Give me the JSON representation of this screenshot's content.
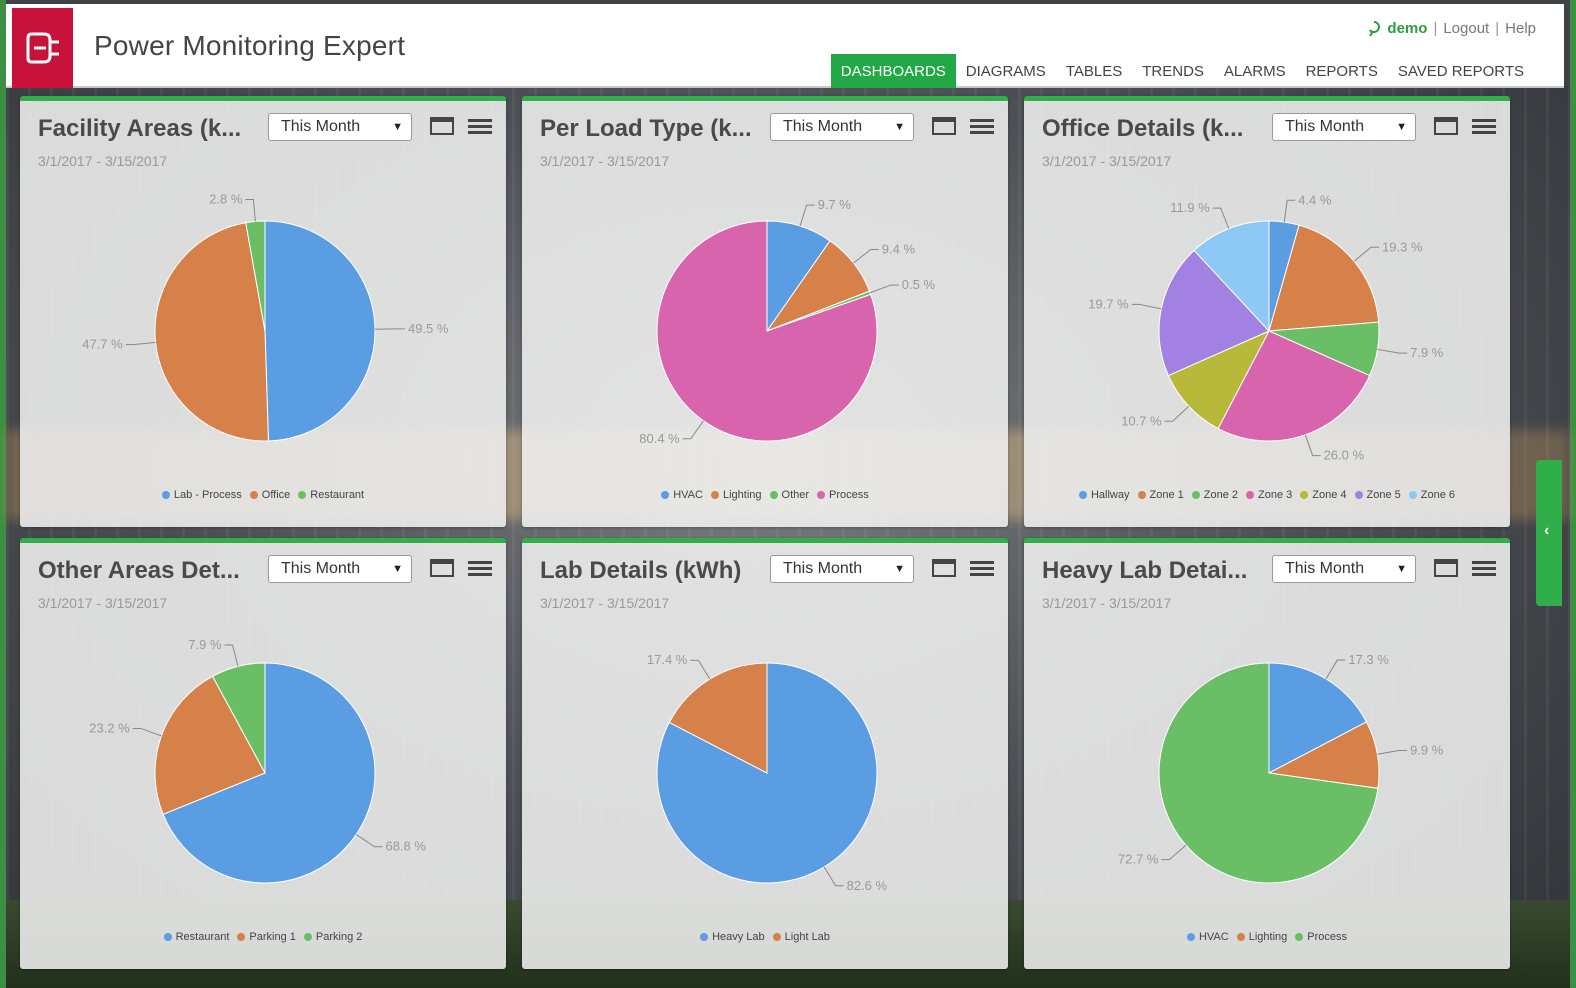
{
  "app": {
    "title": "Power Monitoring Expert"
  },
  "user": {
    "name": "demo",
    "logout": "Logout",
    "help": "Help",
    "sep": "|"
  },
  "nav": [
    {
      "label": "DASHBOARDS",
      "active": true
    },
    {
      "label": "DIAGRAMS",
      "active": false
    },
    {
      "label": "TABLES",
      "active": false
    },
    {
      "label": "TRENDS",
      "active": false
    },
    {
      "label": "ALARMS",
      "active": false
    },
    {
      "label": "REPORTS",
      "active": false
    },
    {
      "label": "SAVED REPORTS",
      "active": false
    }
  ],
  "colors": {
    "accent": "#2fae4a",
    "brand": "#c8123c"
  },
  "panels": [
    {
      "title": "Facility Areas (k...",
      "range": "This Month",
      "date": "3/1/2017 - 3/15/2017"
    },
    {
      "title": "Per Load Type (k...",
      "range": "This Month",
      "date": "3/1/2017 - 3/15/2017"
    },
    {
      "title": "Office Details (k...",
      "range": "This Month",
      "date": "3/1/2017 - 3/15/2017"
    },
    {
      "title": "Other Areas Det...",
      "range": "This Month",
      "date": "3/1/2017 - 3/15/2017"
    },
    {
      "title": "Lab Details (kWh)",
      "range": "This Month",
      "date": "3/1/2017 - 3/15/2017"
    },
    {
      "title": "Heavy Lab Detai...",
      "range": "This Month",
      "date": "3/1/2017 - 3/15/2017"
    }
  ],
  "chart_data": [
    {
      "type": "pie",
      "title": "Facility Areas (k...",
      "categories": [
        "Lab - Process",
        "Office",
        "Restaurant"
      ],
      "values": [
        49.5,
        47.7,
        2.8
      ],
      "labels": [
        "49.5 %",
        "47.7 %",
        "2.8 %"
      ],
      "colors": [
        "#5b9de3",
        "#d6814a",
        "#6abf66"
      ]
    },
    {
      "type": "pie",
      "title": "Per Load Type (k...",
      "categories": [
        "HVAC",
        "Lighting",
        "Other",
        "Process"
      ],
      "values": [
        9.7,
        9.4,
        0.5,
        80.4
      ],
      "labels": [
        "9.7 %",
        "9.4 %",
        "0.5 %",
        "80.4 %"
      ],
      "colors": [
        "#5b9de3",
        "#d6814a",
        "#6abf66",
        "#d964ae"
      ]
    },
    {
      "type": "pie",
      "title": "Office Details (k...",
      "categories": [
        "Hallway",
        "Zone 1",
        "Zone 2",
        "Zone 3",
        "Zone 4",
        "Zone 5",
        "Zone 6"
      ],
      "values": [
        4.4,
        19.3,
        7.9,
        26.0,
        10.7,
        19.7,
        11.9
      ],
      "labels": [
        "4.4 %",
        "19.3 %",
        "7.9 %",
        "26.0 %",
        "10.7 %",
        "19.7 %",
        "11.9 %"
      ],
      "colors": [
        "#5b9de3",
        "#d6814a",
        "#6abf66",
        "#d964ae",
        "#b8b83a",
        "#a381e3",
        "#8ec8f5"
      ]
    },
    {
      "type": "pie",
      "title": "Other Areas Det...",
      "categories": [
        "Restaurant",
        "Parking 1",
        "Parking 2"
      ],
      "values": [
        68.8,
        23.2,
        7.9
      ],
      "labels": [
        "68.8 %",
        "23.2 %",
        "7.9 %"
      ],
      "colors": [
        "#5b9de3",
        "#d6814a",
        "#6abf66"
      ]
    },
    {
      "type": "pie",
      "title": "Lab Details (kWh)",
      "categories": [
        "Heavy Lab",
        "Light Lab"
      ],
      "values": [
        82.6,
        17.4
      ],
      "labels": [
        "82.6 %",
        "17.4 %"
      ],
      "colors": [
        "#5b9de3",
        "#d6814a"
      ]
    },
    {
      "type": "pie",
      "title": "Heavy Lab Detai...",
      "categories": [
        "HVAC",
        "Lighting",
        "Process"
      ],
      "values": [
        17.3,
        9.9,
        72.7
      ],
      "labels": [
        "17.3 %",
        "9.9 %",
        "72.7 %"
      ],
      "colors": [
        "#5b9de3",
        "#d6814a",
        "#6abf66"
      ]
    }
  ]
}
